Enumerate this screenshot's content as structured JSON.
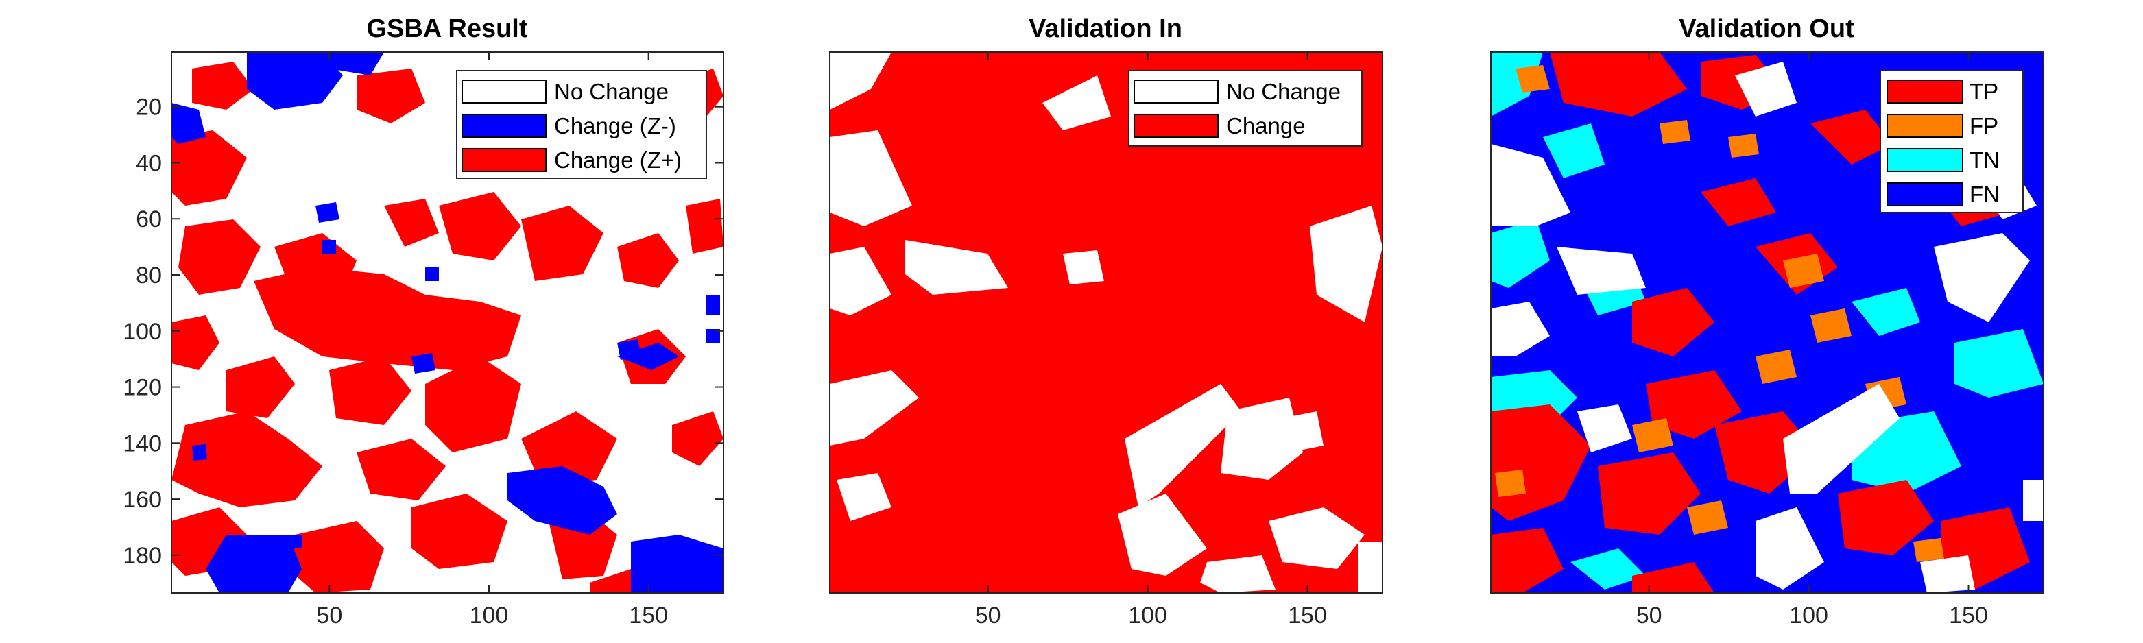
{
  "figure": {
    "panels": [
      {
        "title": "GSBA Result",
        "legend": [
          {
            "label": "No Change",
            "color": "#ffffff"
          },
          {
            "label": "Change (Z-)",
            "color": "#0000ff"
          },
          {
            "label": "Change (Z+)",
            "color": "#ff0000"
          }
        ]
      },
      {
        "title": "Validation In",
        "legend": [
          {
            "label": "No Change",
            "color": "#ffffff"
          },
          {
            "label": "Change",
            "color": "#ff0000"
          }
        ]
      },
      {
        "title": "Validation Out",
        "legend": [
          {
            "label": "TP",
            "color": "#ff0000"
          },
          {
            "label": "FP",
            "color": "#ff8000"
          },
          {
            "label": "TN",
            "color": "#00ffff"
          },
          {
            "label": "FN",
            "color": "#0000ff"
          }
        ]
      }
    ]
  },
  "chart_data": [
    {
      "type": "heatmap",
      "title": "GSBA Result",
      "xlabel": "",
      "ylabel": "",
      "xlim": [
        1,
        173
      ],
      "ylim": [
        1,
        193
      ],
      "y_reversed": true,
      "xticks": [
        50,
        100,
        150
      ],
      "yticks": [
        20,
        40,
        60,
        80,
        100,
        120,
        140,
        160,
        180
      ],
      "categories": [
        "No Change",
        "Change (Z-)",
        "Change (Z+)"
      ],
      "colors": [
        "#ffffff",
        "#0000ff",
        "#ff0000"
      ],
      "legend_position": "top-right"
    },
    {
      "type": "heatmap",
      "title": "Validation In",
      "xlabel": "",
      "ylabel": "",
      "xlim": [
        1,
        173
      ],
      "ylim": [
        1,
        193
      ],
      "y_reversed": true,
      "xticks": [
        50,
        100,
        150
      ],
      "yticks": [],
      "categories": [
        "No Change",
        "Change"
      ],
      "colors": [
        "#ffffff",
        "#ff0000"
      ],
      "legend_position": "top-right"
    },
    {
      "type": "heatmap",
      "title": "Validation Out",
      "xlabel": "",
      "ylabel": "",
      "xlim": [
        1,
        173
      ],
      "ylim": [
        1,
        193
      ],
      "y_reversed": true,
      "xticks": [
        50,
        100,
        150
      ],
      "yticks": [],
      "categories": [
        "TP",
        "FP",
        "TN",
        "FN"
      ],
      "colors": [
        "#ff0000",
        "#ff8000",
        "#00ffff",
        "#0000ff"
      ],
      "legend_position": "top-right"
    }
  ]
}
